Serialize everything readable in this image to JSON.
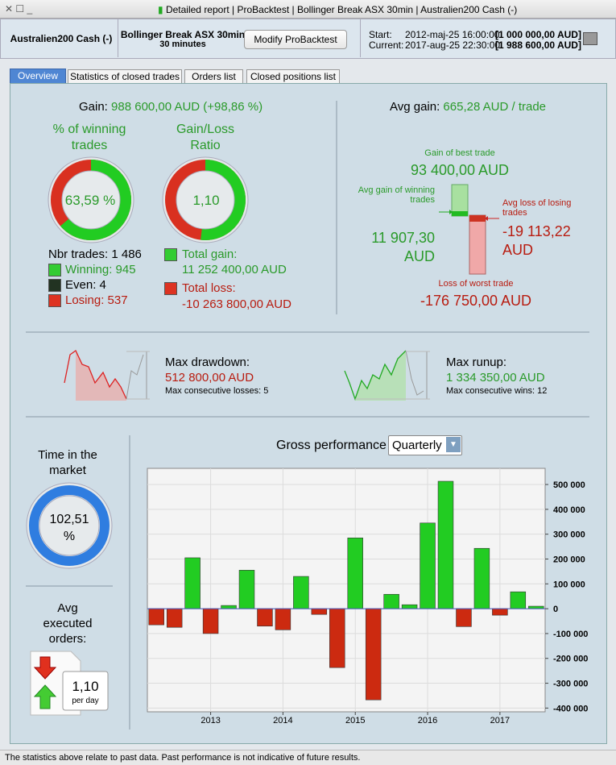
{
  "window": {
    "title_parts": [
      "Detailed report",
      "ProBacktest",
      "Bollinger Break ASX 30min",
      "Australien200 Cash (-)"
    ]
  },
  "header": {
    "instrument": "Australien200 Cash (-)",
    "system_name": "Bollinger Break ASX 30min",
    "timeframe": "30 minutes",
    "button": "Modify ProBacktest",
    "start_label": "Start:",
    "start_date": "2012-maj-25 16:00:00",
    "start_capital": "[1 000 000,00 AUD]",
    "current_label": "Current:",
    "current_date": "2017-aug-25 22:30:00",
    "current_capital": "[1 988 600,00 AUD]"
  },
  "tabs": [
    "Overview",
    "Statistics of closed trades",
    "Orders list",
    "Closed positions list"
  ],
  "gain": {
    "label": "Gain:",
    "value": "988 600,00 AUD (+98,86 %)"
  },
  "winning_pct": {
    "title": "% of winning trades",
    "value": "63,59 %"
  },
  "gain_loss_ratio": {
    "title": "Gain/Loss Ratio",
    "value": "1,10"
  },
  "trades": {
    "total": "Nbr trades: 1 486",
    "winning": "Winning: 945",
    "even": "Even: 4",
    "losing": "Losing: 537"
  },
  "totals": {
    "gain_label": "Total gain:",
    "gain": "11 252 400,00 AUD",
    "loss_label": "Total loss:",
    "loss": "-10 263 800,00 AUD"
  },
  "avg_gain": {
    "label": "Avg gain:",
    "value": "665,28 AUD / trade"
  },
  "best_trade": {
    "label": "Gain of best trade",
    "value": "93 400,00 AUD"
  },
  "avg_win": {
    "label": "Avg gain of winning trades",
    "value": "11 907,30 AUD"
  },
  "avg_loss": {
    "label": "Avg loss of losing trades",
    "value": "-19 113,22 AUD"
  },
  "worst_trade": {
    "label": "Loss of worst trade",
    "value": "-176 750,00 AUD"
  },
  "drawdown": {
    "label": "Max drawdown:",
    "value": "512 800,00 AUD",
    "detail": "Max consecutive losses: 5"
  },
  "runup": {
    "label": "Max runup:",
    "value": "1 334 350,00 AUD",
    "detail": "Max consecutive wins: 12"
  },
  "time_in_market": {
    "label": "Time in the market",
    "value": "102,51 %"
  },
  "avg_orders": {
    "label": "Avg executed orders:",
    "value": "1,10",
    "unit": "per day"
  },
  "period_select": "Quarterly",
  "chart_data": {
    "type": "bar",
    "title": "Gross performance",
    "categories": [
      null,
      null,
      null,
      "2013",
      null,
      null,
      null,
      "2014",
      null,
      null,
      null,
      "2015",
      null,
      null,
      null,
      "2016",
      null,
      null,
      null,
      "2017",
      null,
      null
    ],
    "values": [
      -65000,
      -75000,
      205000,
      -100000,
      13000,
      155000,
      -70000,
      -85000,
      130000,
      -23000,
      -237000,
      285000,
      -367000,
      58000,
      16000,
      345000,
      513000,
      -72000,
      243000,
      -26000,
      68000,
      10000
    ],
    "positive_color": "#22cc22",
    "negative_color": "#cc2a10",
    "ylim": [
      -415000,
      565000
    ],
    "yticks": [
      {
        "value": -400000,
        "label": "-400 000"
      },
      {
        "value": -300000,
        "label": "-300 000"
      },
      {
        "value": -200000,
        "label": "-200 000"
      },
      {
        "value": -100000,
        "label": "-100 000"
      },
      0,
      {
        "value": 100000,
        "label": "100 000"
      },
      {
        "value": 200000,
        "label": "200 000"
      },
      {
        "value": 300000,
        "label": "300 000"
      },
      {
        "value": 400000,
        "label": "400 000"
      },
      {
        "value": 500000,
        "label": "500 000"
      }
    ],
    "grid": true
  },
  "footer": "The statistics above relate to past data. Past performance is not indicative of future results."
}
